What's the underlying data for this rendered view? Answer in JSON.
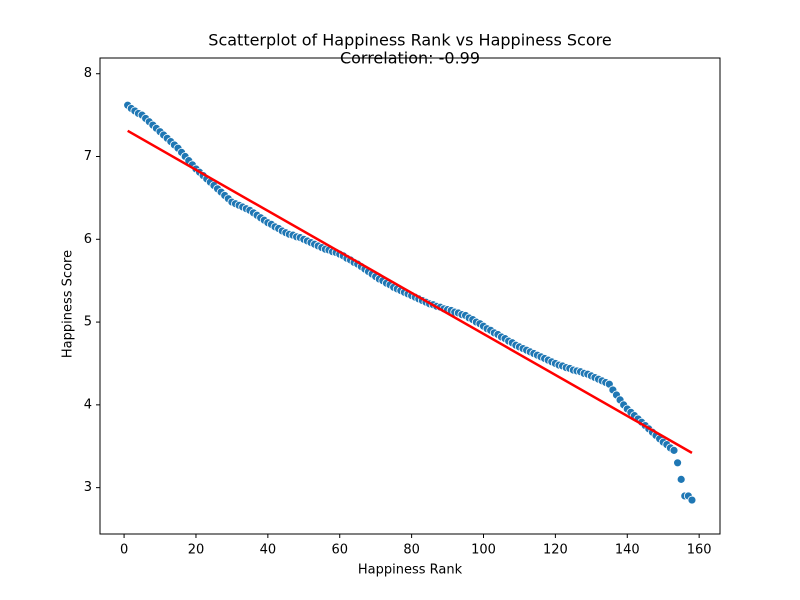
{
  "chart_data": {
    "type": "scatter",
    "title": "Scatterplot of Happiness Rank vs Happiness Score",
    "subtitle": "Correlation: -0.99",
    "x_label": "Happiness Rank",
    "y_label": "Happiness Score",
    "xlim": [
      -6.7,
      165.8
    ],
    "ylim": [
      2.44,
      8.19
    ],
    "xticks": [
      0,
      20,
      40,
      60,
      80,
      100,
      120,
      140,
      160
    ],
    "yticks": [
      3,
      4,
      5,
      6,
      7,
      8
    ],
    "series": [
      {
        "color": "#1f77b4",
        "x": [
          1,
          2,
          3,
          4,
          5,
          6,
          7,
          8,
          9,
          10,
          11,
          12,
          13,
          14,
          15,
          16,
          17,
          18,
          19,
          20,
          21,
          22,
          23,
          24,
          25,
          26,
          27,
          28,
          29,
          30,
          31,
          32,
          33,
          34,
          35,
          36,
          37,
          38,
          39,
          40,
          41,
          42,
          43,
          44,
          45,
          46,
          47,
          48,
          49,
          50,
          51,
          52,
          53,
          54,
          55,
          56,
          57,
          58,
          59,
          60,
          61,
          62,
          63,
          64,
          65,
          66,
          67,
          68,
          69,
          70,
          71,
          72,
          73,
          74,
          75,
          76,
          77,
          78,
          79,
          80,
          81,
          82,
          83,
          84,
          85,
          86,
          87,
          88,
          89,
          90,
          91,
          92,
          93,
          94,
          95,
          96,
          97,
          98,
          99,
          100,
          101,
          102,
          103,
          104,
          105,
          106,
          107,
          108,
          109,
          110,
          111,
          112,
          113,
          114,
          115,
          116,
          117,
          118,
          119,
          120,
          121,
          122,
          123,
          124,
          125,
          126,
          127,
          128,
          129,
          130,
          131,
          132,
          133,
          134,
          135,
          136,
          137,
          138,
          139,
          140,
          141,
          142,
          143,
          144,
          145,
          146,
          147,
          148,
          149,
          150,
          151,
          152,
          153,
          154,
          155,
          156,
          157,
          158
        ],
        "values": [
          7.62,
          7.58,
          7.55,
          7.52,
          7.5,
          7.46,
          7.42,
          7.38,
          7.34,
          7.3,
          7.26,
          7.22,
          7.18,
          7.14,
          7.1,
          7.05,
          7.0,
          6.95,
          6.9,
          6.85,
          6.81,
          6.77,
          6.73,
          6.69,
          6.65,
          6.61,
          6.57,
          6.53,
          6.49,
          6.45,
          6.43,
          6.41,
          6.39,
          6.37,
          6.35,
          6.32,
          6.29,
          6.26,
          6.23,
          6.2,
          6.18,
          6.15,
          6.13,
          6.1,
          6.08,
          6.06,
          6.05,
          6.03,
          6.02,
          6.0,
          5.98,
          5.96,
          5.94,
          5.92,
          5.9,
          5.88,
          5.87,
          5.85,
          5.84,
          5.82,
          5.8,
          5.77,
          5.75,
          5.72,
          5.7,
          5.67,
          5.64,
          5.61,
          5.58,
          5.55,
          5.52,
          5.5,
          5.47,
          5.45,
          5.42,
          5.4,
          5.38,
          5.36,
          5.34,
          5.32,
          5.3,
          5.28,
          5.26,
          5.24,
          5.22,
          5.21,
          5.19,
          5.18,
          5.16,
          5.15,
          5.14,
          5.12,
          5.11,
          5.09,
          5.08,
          5.05,
          5.03,
          5.0,
          4.98,
          4.95,
          4.92,
          4.9,
          4.87,
          4.85,
          4.82,
          4.8,
          4.77,
          4.75,
          4.72,
          4.7,
          4.68,
          4.66,
          4.64,
          4.62,
          4.6,
          4.58,
          4.56,
          4.54,
          4.52,
          4.5,
          4.48,
          4.47,
          4.45,
          4.44,
          4.42,
          4.41,
          4.4,
          4.38,
          4.37,
          4.35,
          4.33,
          4.31,
          4.29,
          4.27,
          4.25,
          4.18,
          4.12,
          4.06,
          4.0,
          3.95,
          3.91,
          3.87,
          3.83,
          3.79,
          3.75,
          3.71,
          3.67,
          3.63,
          3.59,
          3.55,
          3.52,
          3.48,
          3.45,
          3.3,
          3.1,
          2.9,
          2.9,
          2.85
        ]
      }
    ],
    "regression": {
      "color": "#ff0000",
      "x": [
        1,
        158
      ],
      "values": [
        7.31,
        3.42
      ]
    }
  }
}
